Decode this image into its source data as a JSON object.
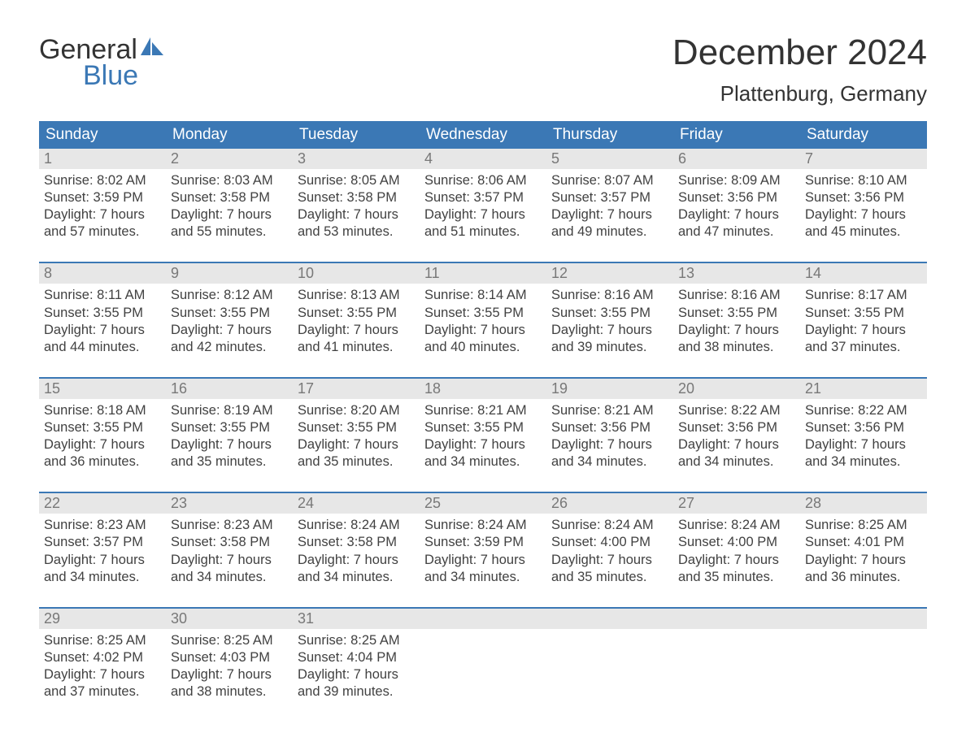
{
  "brand": {
    "line1": "General",
    "line2": "Blue",
    "accent": "#3b78b5"
  },
  "title": "December 2024",
  "location": "Plattenburg, Germany",
  "colors": {
    "header_bg": "#3b78b5",
    "header_text": "#ffffff",
    "daynum_bg": "#e7e7e7",
    "daynum_text": "#787878",
    "body_text": "#414141",
    "page_bg": "#ffffff",
    "week_border": "#3b78b5"
  },
  "dayNames": [
    "Sunday",
    "Monday",
    "Tuesday",
    "Wednesday",
    "Thursday",
    "Friday",
    "Saturday"
  ],
  "weeks": [
    [
      {
        "n": "1",
        "sr": "8:02 AM",
        "ss": "3:59 PM",
        "dl": "7 hours and 57 minutes."
      },
      {
        "n": "2",
        "sr": "8:03 AM",
        "ss": "3:58 PM",
        "dl": "7 hours and 55 minutes."
      },
      {
        "n": "3",
        "sr": "8:05 AM",
        "ss": "3:58 PM",
        "dl": "7 hours and 53 minutes."
      },
      {
        "n": "4",
        "sr": "8:06 AM",
        "ss": "3:57 PM",
        "dl": "7 hours and 51 minutes."
      },
      {
        "n": "5",
        "sr": "8:07 AM",
        "ss": "3:57 PM",
        "dl": "7 hours and 49 minutes."
      },
      {
        "n": "6",
        "sr": "8:09 AM",
        "ss": "3:56 PM",
        "dl": "7 hours and 47 minutes."
      },
      {
        "n": "7",
        "sr": "8:10 AM",
        "ss": "3:56 PM",
        "dl": "7 hours and 45 minutes."
      }
    ],
    [
      {
        "n": "8",
        "sr": "8:11 AM",
        "ss": "3:55 PM",
        "dl": "7 hours and 44 minutes."
      },
      {
        "n": "9",
        "sr": "8:12 AM",
        "ss": "3:55 PM",
        "dl": "7 hours and 42 minutes."
      },
      {
        "n": "10",
        "sr": "8:13 AM",
        "ss": "3:55 PM",
        "dl": "7 hours and 41 minutes."
      },
      {
        "n": "11",
        "sr": "8:14 AM",
        "ss": "3:55 PM",
        "dl": "7 hours and 40 minutes."
      },
      {
        "n": "12",
        "sr": "8:16 AM",
        "ss": "3:55 PM",
        "dl": "7 hours and 39 minutes."
      },
      {
        "n": "13",
        "sr": "8:16 AM",
        "ss": "3:55 PM",
        "dl": "7 hours and 38 minutes."
      },
      {
        "n": "14",
        "sr": "8:17 AM",
        "ss": "3:55 PM",
        "dl": "7 hours and 37 minutes."
      }
    ],
    [
      {
        "n": "15",
        "sr": "8:18 AM",
        "ss": "3:55 PM",
        "dl": "7 hours and 36 minutes."
      },
      {
        "n": "16",
        "sr": "8:19 AM",
        "ss": "3:55 PM",
        "dl": "7 hours and 35 minutes."
      },
      {
        "n": "17",
        "sr": "8:20 AM",
        "ss": "3:55 PM",
        "dl": "7 hours and 35 minutes."
      },
      {
        "n": "18",
        "sr": "8:21 AM",
        "ss": "3:55 PM",
        "dl": "7 hours and 34 minutes."
      },
      {
        "n": "19",
        "sr": "8:21 AM",
        "ss": "3:56 PM",
        "dl": "7 hours and 34 minutes."
      },
      {
        "n": "20",
        "sr": "8:22 AM",
        "ss": "3:56 PM",
        "dl": "7 hours and 34 minutes."
      },
      {
        "n": "21",
        "sr": "8:22 AM",
        "ss": "3:56 PM",
        "dl": "7 hours and 34 minutes."
      }
    ],
    [
      {
        "n": "22",
        "sr": "8:23 AM",
        "ss": "3:57 PM",
        "dl": "7 hours and 34 minutes."
      },
      {
        "n": "23",
        "sr": "8:23 AM",
        "ss": "3:58 PM",
        "dl": "7 hours and 34 minutes."
      },
      {
        "n": "24",
        "sr": "8:24 AM",
        "ss": "3:58 PM",
        "dl": "7 hours and 34 minutes."
      },
      {
        "n": "25",
        "sr": "8:24 AM",
        "ss": "3:59 PM",
        "dl": "7 hours and 34 minutes."
      },
      {
        "n": "26",
        "sr": "8:24 AM",
        "ss": "4:00 PM",
        "dl": "7 hours and 35 minutes."
      },
      {
        "n": "27",
        "sr": "8:24 AM",
        "ss": "4:00 PM",
        "dl": "7 hours and 35 minutes."
      },
      {
        "n": "28",
        "sr": "8:25 AM",
        "ss": "4:01 PM",
        "dl": "7 hours and 36 minutes."
      }
    ],
    [
      {
        "n": "29",
        "sr": "8:25 AM",
        "ss": "4:02 PM",
        "dl": "7 hours and 37 minutes."
      },
      {
        "n": "30",
        "sr": "8:25 AM",
        "ss": "4:03 PM",
        "dl": "7 hours and 38 minutes."
      },
      {
        "n": "31",
        "sr": "8:25 AM",
        "ss": "4:04 PM",
        "dl": "7 hours and 39 minutes."
      },
      null,
      null,
      null,
      null
    ]
  ],
  "labels": {
    "sunrise": "Sunrise: ",
    "sunset": "Sunset: ",
    "daylight": "Daylight: "
  }
}
